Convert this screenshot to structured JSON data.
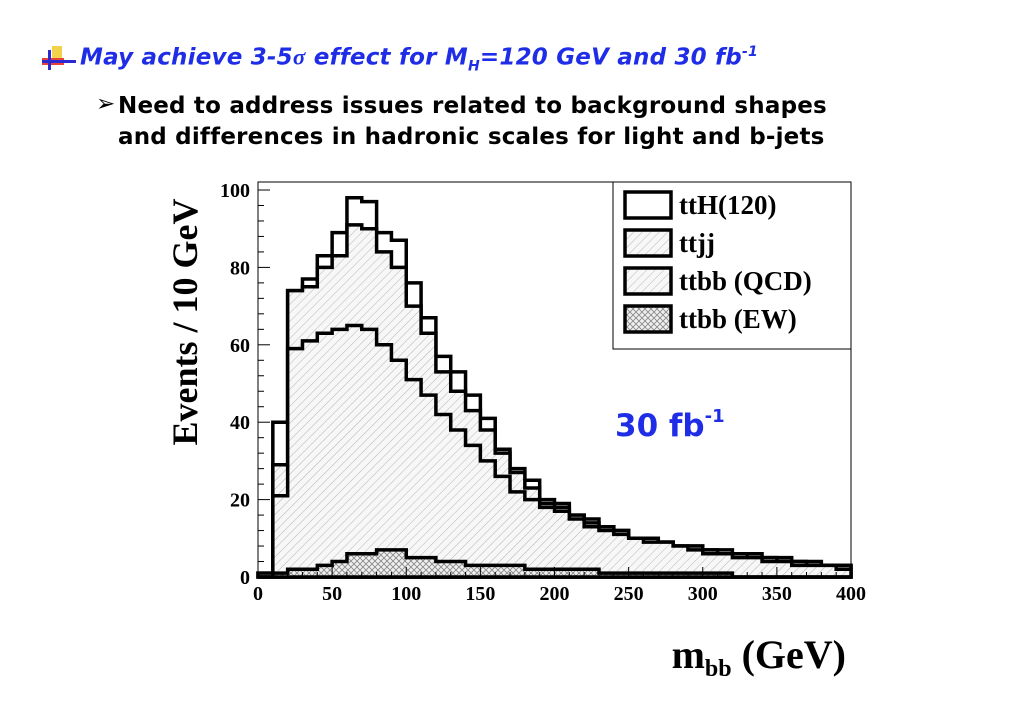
{
  "slide": {
    "bullet_main": {
      "pre": "May achieve 3-5",
      "sigma": "σ",
      "mid": " effect for M",
      "sub_H": "H",
      "post": "=120 GeV and 30 fb",
      "sup": "-1"
    },
    "bullet_sub": {
      "marker": "➢",
      "line1": "Need to address issues related to background shapes",
      "line2": "and differences in hadronic scales for light and b-jets"
    }
  },
  "colors": {
    "title_blue": "#1f2ee6",
    "annotation_blue": "#1f2ee6",
    "bullet_yellow": "#f2d24a",
    "bullet_red": "#e8403a",
    "bullet_blue": "#2a2ad0"
  },
  "chart_data": {
    "type": "histogram",
    "bin_width": 10,
    "x_range": [
      0,
      400
    ],
    "y_range": [
      0,
      100
    ],
    "ylabel": "Events / 10 GeV",
    "xlabel_main": "m",
    "xlabel_sub": "bb",
    "xlabel_unit": " (GeV)",
    "x_ticks": [
      "0",
      "50",
      "100",
      "150",
      "200",
      "250",
      "300",
      "350",
      "400"
    ],
    "y_ticks": [
      "0",
      "20",
      "40",
      "60",
      "80",
      "100"
    ],
    "annotation": {
      "text": "30 fb",
      "sup": "-1"
    },
    "legend": [
      {
        "label": "ttH(120)",
        "fill": "none"
      },
      {
        "label": "ttjj",
        "fill": "hatch"
      },
      {
        "label": "ttbb (QCD)",
        "fill": "hatch"
      },
      {
        "label": "ttbb (EW)",
        "fill": "cross"
      }
    ],
    "series": [
      {
        "name": "ttH(120)",
        "role": "stack_total",
        "values": [
          1,
          40,
          74,
          77,
          83,
          89,
          98,
          97,
          89,
          87,
          76,
          67,
          57,
          53,
          47,
          41,
          33,
          28,
          25,
          20,
          19,
          16,
          15,
          13,
          12,
          10,
          10,
          9,
          8,
          8,
          7,
          7,
          6,
          6,
          5,
          5,
          4,
          4,
          3,
          3
        ]
      },
      {
        "name": "ttjj",
        "role": "stacked_with_ttbb",
        "values": [
          1,
          29,
          74,
          75,
          80,
          83,
          91,
          90,
          84,
          80,
          70,
          63,
          53,
          48,
          43,
          38,
          32,
          27,
          23,
          19,
          18,
          16,
          14,
          13,
          12,
          10,
          10,
          9,
          8,
          8,
          7,
          6,
          6,
          5,
          5,
          4,
          4,
          3,
          3,
          3
        ]
      },
      {
        "name": "ttbb (QCD)",
        "role": "stacked_with_ew",
        "values": [
          0,
          21,
          59,
          61,
          63,
          64,
          65,
          64,
          60,
          56,
          51,
          47,
          42,
          38,
          34,
          30,
          26,
          22,
          20,
          18,
          17,
          15,
          13,
          12,
          11,
          10,
          9,
          9,
          8,
          7,
          6,
          6,
          5,
          5,
          4,
          4,
          3,
          3,
          3,
          2
        ]
      },
      {
        "name": "ttbb (EW)",
        "values": [
          0,
          1,
          2,
          2,
          3,
          4,
          6,
          6,
          7,
          7,
          5,
          5,
          4,
          4,
          3,
          3,
          3,
          3,
          2,
          2,
          2,
          2,
          2,
          1,
          1,
          1,
          1,
          1,
          1,
          1,
          1,
          1,
          0,
          0,
          0,
          0,
          0,
          0,
          0,
          0
        ]
      }
    ]
  }
}
